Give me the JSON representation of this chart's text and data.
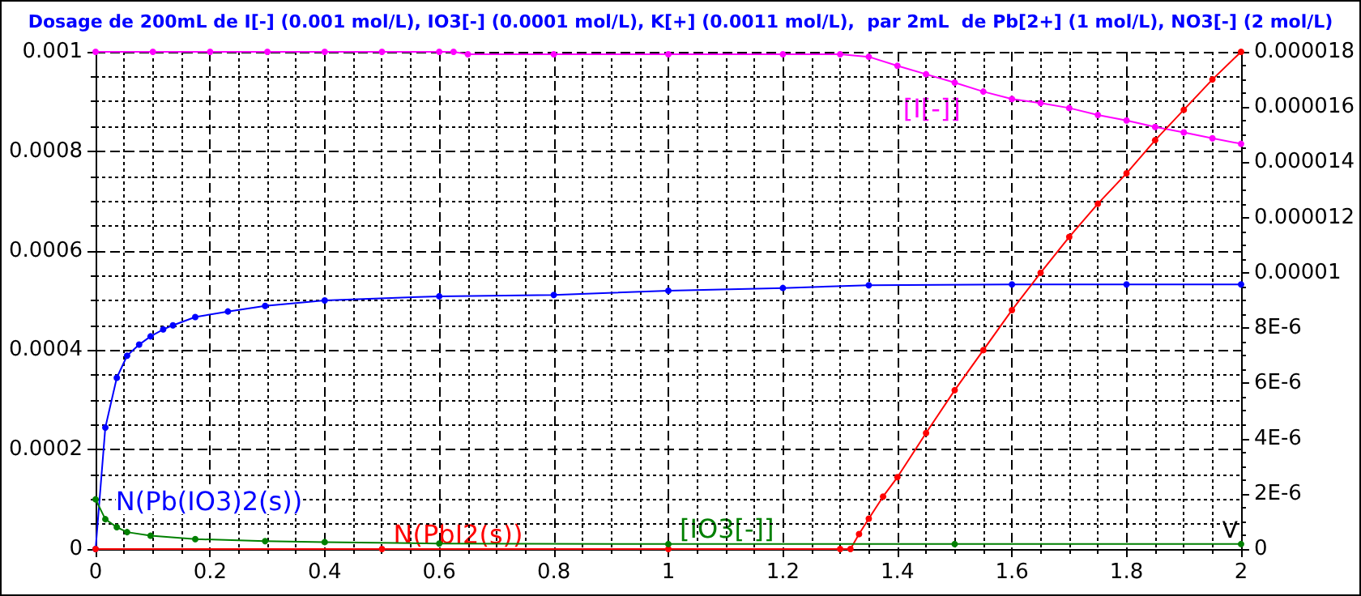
{
  "chart_data": {
    "type": "line",
    "title": "Dosage de 200mL de I[-] (0.001 mol/L), IO3[-] (0.0001 mol/L), K[+] (0.0011 mol/L),  par 2mL  de Pb[2+] (1 mol/L), NO3[-] (2 mol/L)",
    "xlabel": "V",
    "series": [
      {
        "name": "[I[-]]",
        "color": "#ff00ff",
        "x": [
          0,
          0.1,
          0.2,
          0.3,
          0.4,
          0.5,
          0.6,
          0.625,
          0.65,
          0.8,
          1.0,
          1.2,
          1.3,
          1.35,
          1.4,
          1.45,
          1.5,
          1.55,
          1.6,
          1.65,
          1.7,
          1.75,
          1.8,
          1.85,
          1.9,
          1.95,
          2
        ],
        "values": [
          0.001,
          0.001,
          0.001,
          0.001,
          0.001,
          0.001,
          0.001,
          0.001,
          0.000995,
          0.000995,
          0.000995,
          0.000995,
          0.000995,
          0.00099,
          0.000972,
          0.000955,
          0.000938,
          0.00092,
          0.000905,
          0.000897,
          0.000887,
          0.000873,
          0.000862,
          0.000849,
          0.000838,
          0.000826,
          0.000815
        ]
      },
      {
        "name": "N(Pb(IO3)2(s))",
        "color": "#0000ff",
        "axis": "y2",
        "x": [
          0,
          0.017,
          0.037,
          0.055,
          0.076,
          0.096,
          0.118,
          0.135,
          0.174,
          0.231,
          0.296,
          0.4,
          0.6,
          0.8,
          1.0,
          1.2,
          1.35,
          1.6,
          1.8,
          2
        ],
        "values": [
          0,
          4.4e-06,
          6.2e-06,
          7e-06,
          7.4e-06,
          7.7e-06,
          7.95e-06,
          8.1e-06,
          8.4e-06,
          8.6e-06,
          8.8e-06,
          9e-06,
          9.15e-06,
          9.2e-06,
          9.35e-06,
          9.45e-06,
          9.55e-06,
          9.58e-06,
          9.58e-06,
          9.58e-06
        ]
      },
      {
        "name": "N(PbI2(s))",
        "color": "#ff0000",
        "axis": "y2",
        "x": [
          0,
          0.5,
          1.0,
          1.3,
          1.318,
          1.333,
          1.35,
          1.375,
          1.4,
          1.45,
          1.5,
          1.55,
          1.6,
          1.65,
          1.7,
          1.75,
          1.8,
          1.85,
          1.9,
          1.95,
          2
        ],
        "values": [
          0,
          0,
          0,
          0,
          0,
          5.4e-07,
          1.1e-06,
          1.9e-06,
          2.6e-06,
          4.2e-06,
          5.75e-06,
          7.2e-06,
          8.65e-06,
          1e-05,
          1.13e-05,
          1.25e-05,
          1.36e-05,
          1.48e-05,
          1.59e-05,
          1.7e-05,
          1.8e-05
        ]
      },
      {
        "name": "[IO3[-]]",
        "color": "#008000",
        "x": [
          0,
          0.017,
          0.037,
          0.055,
          0.096,
          0.174,
          0.296,
          0.4,
          0.6,
          1.0,
          1.5,
          2
        ],
        "values": [
          0.0001,
          6e-05,
          4.4e-05,
          3.4e-05,
          2.7e-05,
          2e-05,
          1.6e-05,
          1.4e-05,
          1.1e-05,
          1e-05,
          1e-05,
          1e-05
        ]
      }
    ],
    "xlim": [
      0,
      2
    ],
    "xticks": [
      0,
      0.2,
      0.4,
      0.6,
      0.8,
      1,
      1.2,
      1.4,
      1.6,
      1.8,
      2
    ],
    "ylim": [
      0,
      0.001
    ],
    "yticks": [
      0,
      0.0002,
      0.0004,
      0.0006,
      0.0008,
      0.001
    ],
    "y2lim": [
      0,
      1.8e-05
    ],
    "y2ticks": [
      0,
      {
        "value": 2e-06,
        "label": "2E-6"
      },
      {
        "value": 4e-06,
        "label": "4E-6"
      },
      {
        "value": 6e-06,
        "label": "6E-6"
      },
      {
        "value": 8e-06,
        "label": "8E-6"
      },
      {
        "value": 1e-05,
        "label": "0.00001"
      },
      {
        "value": 1.2e-05,
        "label": "0.000012"
      },
      {
        "value": 1.4e-05,
        "label": "0.000014"
      },
      {
        "value": 1.6e-05,
        "label": "0.000016"
      },
      {
        "value": 1.8e-05,
        "label": "0.000018"
      }
    ],
    "grid": true,
    "legend": false,
    "marker": "circle",
    "line_style": "solid"
  }
}
